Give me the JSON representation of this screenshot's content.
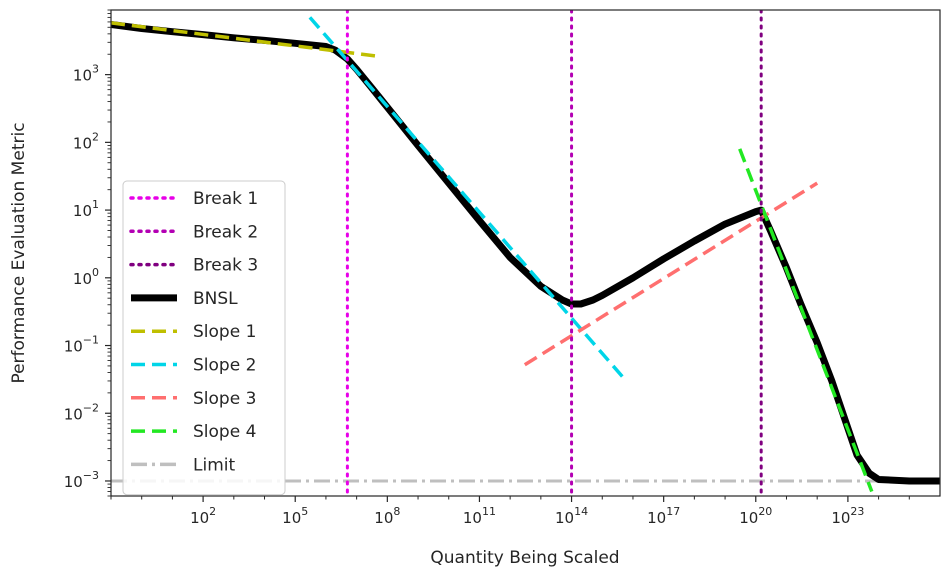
{
  "chart_data": {
    "type": "line",
    "title": "",
    "xlabel": "Quantity Being Scaled",
    "ylabel": "Performance Evaluation Metric",
    "xscale": "log",
    "yscale": "log",
    "xlim": [
      0.1,
      1e+26
    ],
    "ylim": [
      0.0006,
      9000
    ],
    "x_ticks": [
      {
        "value": 100.0,
        "base": "10",
        "exp": "2"
      },
      {
        "value": 100000.0,
        "base": "10",
        "exp": "5"
      },
      {
        "value": 100000000.0,
        "base": "10",
        "exp": "8"
      },
      {
        "value": 100000000000.0,
        "base": "10",
        "exp": "11"
      },
      {
        "value": 100000000000000.0,
        "base": "10",
        "exp": "14"
      },
      {
        "value": 1e+17,
        "base": "10",
        "exp": "17"
      },
      {
        "value": 1e+20,
        "base": "10",
        "exp": "20"
      },
      {
        "value": 1e+23,
        "base": "10",
        "exp": "23"
      }
    ],
    "y_ticks": [
      {
        "value": 0.001,
        "base": "10",
        "exp": "−3"
      },
      {
        "value": 0.01,
        "base": "10",
        "exp": "−2"
      },
      {
        "value": 0.1,
        "base": "10",
        "exp": "−1"
      },
      {
        "value": 1.0,
        "base": "10",
        "exp": "0"
      },
      {
        "value": 10.0,
        "base": "10",
        "exp": "1"
      },
      {
        "value": 100.0,
        "base": "10",
        "exp": "2"
      },
      {
        "value": 1000.0,
        "base": "10",
        "exp": "3"
      }
    ],
    "grid": false,
    "legend_position": "left",
    "series": [
      {
        "name": "Break 1",
        "kind": "vline",
        "x": 5000000.0,
        "color": "#e800e8",
        "dash": "dotted"
      },
      {
        "name": "Break 2",
        "kind": "vline",
        "x": 100000000000000.0,
        "color": "#b300b3",
        "dash": "dotted"
      },
      {
        "name": "Break 3",
        "kind": "vline",
        "x": 1.5e+20,
        "color": "#800080",
        "dash": "dotted"
      },
      {
        "name": "BNSL",
        "kind": "curve",
        "color": "#000000",
        "dash": "solid",
        "x": [
          0.1,
          1,
          10,
          100,
          1000,
          10000.0,
          100000.0,
          1000000.0,
          2000000.0,
          5000000.0,
          10000000.0,
          30000000.0,
          100000000.0,
          1000000000.0,
          10000000000.0,
          100000000000.0,
          1000000000000.0,
          10000000000000.0,
          50000000000000.0,
          100000000000000.0,
          200000000000000.0,
          500000000000000.0,
          1000000000000000.0,
          1e+16,
          1e+17,
          1e+18,
          1e+19,
          1e+20,
          1.5e+20,
          3e+20,
          1e+21,
          3e+21,
          1e+22,
          3e+22,
          1e+23,
          2e+23,
          5e+23,
          1e+24,
          1e+25,
          1e+26
        ],
        "y": [
          5500,
          4800,
          4300,
          3900,
          3500,
          3200,
          2900,
          2600,
          2300,
          1700,
          1200,
          650,
          330,
          90,
          25,
          7,
          2,
          0.75,
          0.47,
          0.41,
          0.41,
          0.47,
          0.55,
          1.0,
          1.9,
          3.5,
          6.2,
          9.5,
          10,
          5,
          1.4,
          0.4,
          0.11,
          0.03,
          0.006,
          0.0024,
          0.0013,
          0.00105,
          0.001,
          0.001
        ]
      },
      {
        "name": "Slope 1",
        "kind": "segment",
        "color": "#bfbf00",
        "dash": "dashed",
        "x": [
          0.1,
          60000000.0
        ],
        "y": [
          5800,
          1850
        ]
      },
      {
        "name": "Slope 2",
        "kind": "segment",
        "color": "#00d5e8",
        "dash": "dashed",
        "x": [
          300000.0,
          5000000000000000.0
        ],
        "y": [
          7000,
          0.033
        ]
      },
      {
        "name": "Slope 3",
        "kind": "segment",
        "color": "#ff6f6f",
        "dash": "dashed",
        "x": [
          3000000000000.0,
          1e+22
        ],
        "y": [
          0.052,
          25
        ]
      },
      {
        "name": "Slope 4",
        "kind": "segment",
        "color": "#22e822",
        "dash": "dashed",
        "x": [
          3e+19,
          6e+23
        ],
        "y": [
          80,
          0.0007
        ]
      },
      {
        "name": "Limit",
        "kind": "hline",
        "y": 0.001,
        "color": "#bfbfbf",
        "dash": "dashdot"
      }
    ]
  }
}
